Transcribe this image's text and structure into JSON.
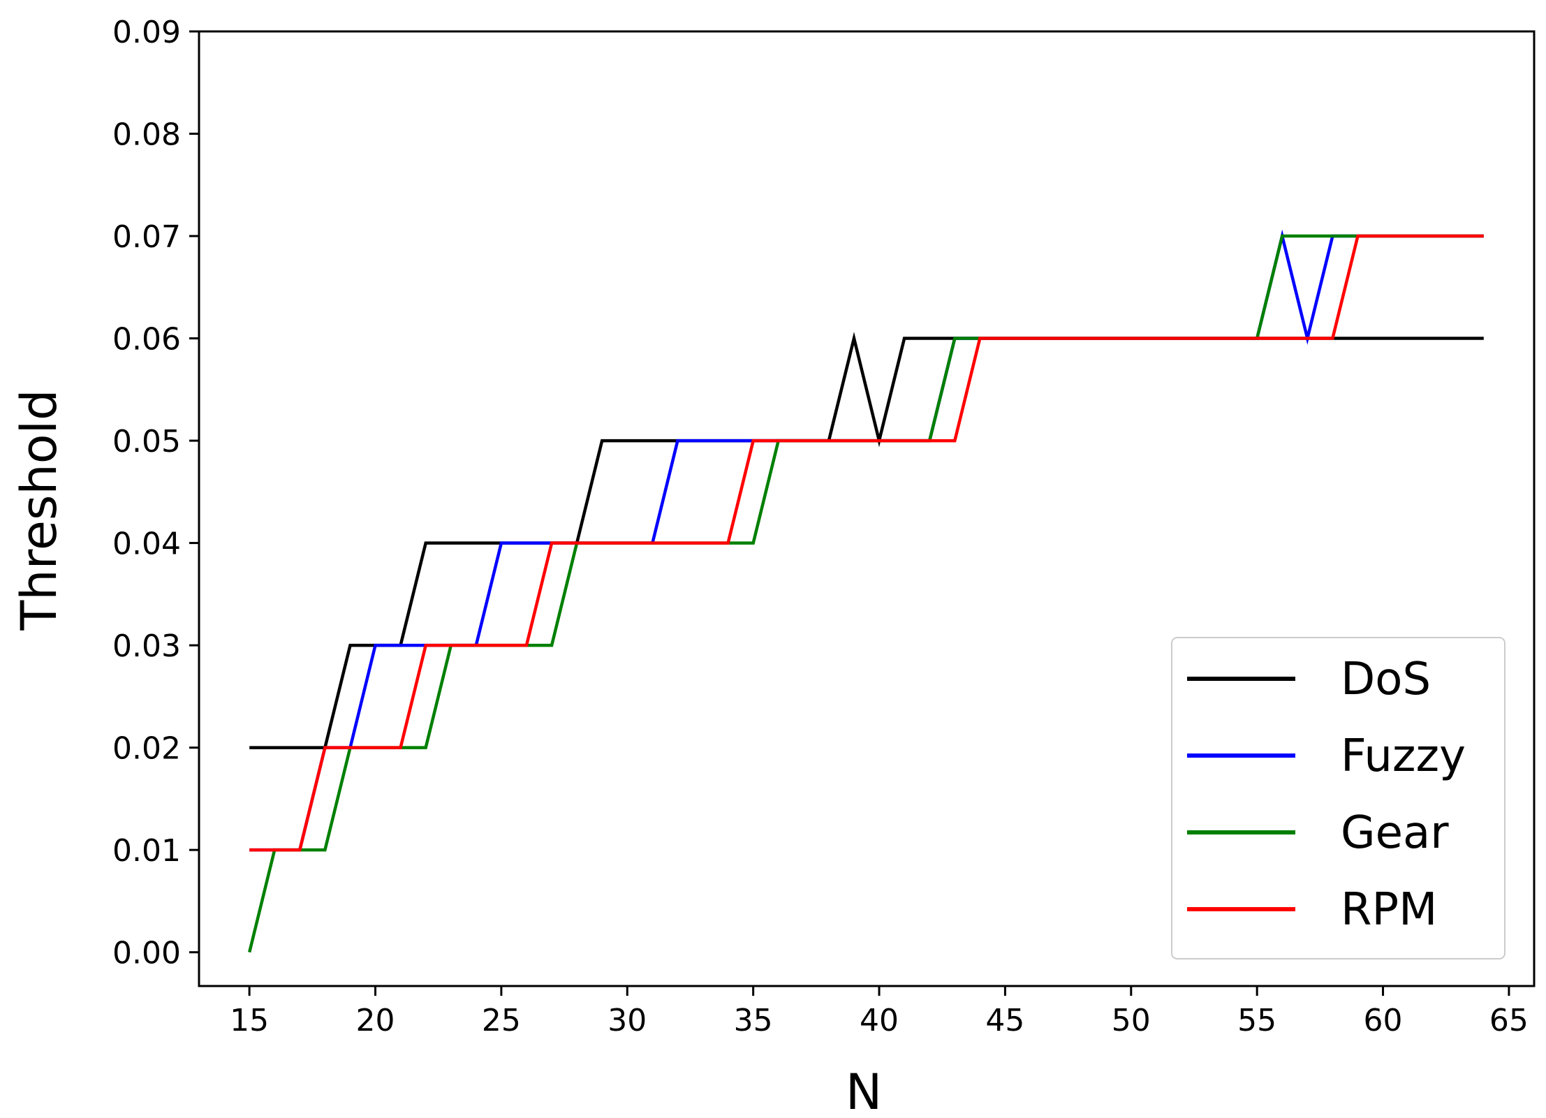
{
  "chart_data": {
    "type": "line",
    "title": "",
    "xlabel": "N",
    "ylabel": "Threshold",
    "xlim": [
      13,
      66
    ],
    "ylim": [
      -0.0033,
      0.09
    ],
    "xticks": [
      15,
      20,
      25,
      30,
      35,
      40,
      45,
      50,
      55,
      60,
      65
    ],
    "xtick_labels": [
      "15",
      "20",
      "25",
      "30",
      "35",
      "40",
      "45",
      "50",
      "55",
      "60",
      "65"
    ],
    "yticks": [
      0.0,
      0.01,
      0.02,
      0.03,
      0.04,
      0.05,
      0.06,
      0.07,
      0.08,
      0.09
    ],
    "ytick_labels": [
      "0.00",
      "0.01",
      "0.02",
      "0.03",
      "0.04",
      "0.05",
      "0.06",
      "0.07",
      "0.08",
      "0.09"
    ],
    "grid": false,
    "legend_position": "lower-right",
    "x": [
      15,
      16,
      17,
      18,
      19,
      20,
      21,
      22,
      23,
      24,
      25,
      26,
      27,
      28,
      29,
      30,
      31,
      32,
      33,
      34,
      35,
      36,
      37,
      38,
      39,
      40,
      41,
      42,
      43,
      44,
      45,
      46,
      47,
      48,
      49,
      50,
      51,
      52,
      53,
      54,
      55,
      56,
      57,
      58,
      59,
      60,
      61,
      62,
      63,
      64
    ],
    "series": [
      {
        "name": "DoS",
        "color": "#000000",
        "values": [
          0.02,
          0.02,
          0.02,
          0.02,
          0.03,
          0.03,
          0.03,
          0.04,
          0.04,
          0.04,
          0.04,
          0.04,
          0.04,
          0.04,
          0.05,
          0.05,
          0.05,
          0.05,
          0.05,
          0.05,
          0.05,
          0.05,
          0.05,
          0.05,
          0.06,
          0.05,
          0.06,
          0.06,
          0.06,
          0.06,
          0.06,
          0.06,
          0.06,
          0.06,
          0.06,
          0.06,
          0.06,
          0.06,
          0.06,
          0.06,
          0.06,
          0.06,
          0.06,
          0.06,
          0.06,
          0.06,
          0.06,
          0.06,
          0.06,
          0.06
        ]
      },
      {
        "name": "Fuzzy",
        "color": "#0000ff",
        "values": [
          0.01,
          0.01,
          0.01,
          0.02,
          0.02,
          0.03,
          0.03,
          0.03,
          0.03,
          0.03,
          0.04,
          0.04,
          0.04,
          0.04,
          0.04,
          0.04,
          0.04,
          0.05,
          0.05,
          0.05,
          0.05,
          0.05,
          0.05,
          0.05,
          0.05,
          0.05,
          0.05,
          0.05,
          0.06,
          0.06,
          0.06,
          0.06,
          0.06,
          0.06,
          0.06,
          0.06,
          0.06,
          0.06,
          0.06,
          0.06,
          0.06,
          0.07,
          0.06,
          0.07,
          0.07,
          0.07,
          0.07,
          0.07,
          0.07,
          0.07
        ]
      },
      {
        "name": "Gear",
        "color": "#008000",
        "values": [
          0.0,
          0.01,
          0.01,
          0.01,
          0.02,
          0.02,
          0.02,
          0.02,
          0.03,
          0.03,
          0.03,
          0.03,
          0.03,
          0.04,
          0.04,
          0.04,
          0.04,
          0.04,
          0.04,
          0.04,
          0.04,
          0.05,
          0.05,
          0.05,
          0.05,
          0.05,
          0.05,
          0.05,
          0.06,
          0.06,
          0.06,
          0.06,
          0.06,
          0.06,
          0.06,
          0.06,
          0.06,
          0.06,
          0.06,
          0.06,
          0.06,
          0.07,
          0.07,
          0.07,
          0.07,
          0.07,
          0.07,
          0.07,
          0.07,
          0.07
        ]
      },
      {
        "name": "RPM",
        "color": "#ff0000",
        "values": [
          0.01,
          0.01,
          0.01,
          0.02,
          0.02,
          0.02,
          0.02,
          0.03,
          0.03,
          0.03,
          0.03,
          0.03,
          0.04,
          0.04,
          0.04,
          0.04,
          0.04,
          0.04,
          0.04,
          0.04,
          0.05,
          0.05,
          0.05,
          0.05,
          0.05,
          0.05,
          0.05,
          0.05,
          0.05,
          0.06,
          0.06,
          0.06,
          0.06,
          0.06,
          0.06,
          0.06,
          0.06,
          0.06,
          0.06,
          0.06,
          0.06,
          0.06,
          0.06,
          0.06,
          0.07,
          0.07,
          0.07,
          0.07,
          0.07,
          0.07
        ]
      }
    ]
  }
}
